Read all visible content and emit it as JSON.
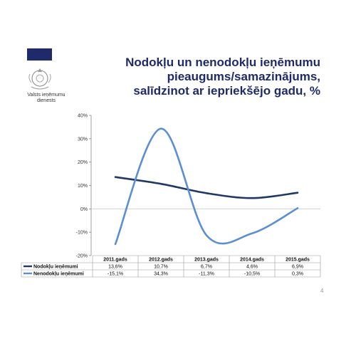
{
  "header": {
    "title_lines": [
      "Nodokļu un nenodokļu ieņēmumu",
      "pieaugums/samazinājums,",
      "salīdzinot ar iepriekšējo gadu, %"
    ],
    "org_name_lines": [
      "Valsts ieņēmumu",
      "dienests"
    ],
    "brand_color": "#1f2a6b",
    "page_number": "4"
  },
  "chart_data": {
    "type": "line",
    "categories": [
      "2011.gads",
      "2012.gads",
      "2013.gads",
      "2014.gads",
      "2015.gads"
    ],
    "y_tick_labels": [
      "40%",
      "30%",
      "20%",
      "10%",
      "0%",
      "-10%",
      "-20%"
    ],
    "ylim": [
      -20,
      40
    ],
    "smooth": true,
    "legend": "data-table-left",
    "series": [
      {
        "name": "Nodokļu ieņēmumi",
        "values": [
          13.6,
          10.7,
          6.7,
          4.6,
          6.9
        ],
        "labels": [
          "13,6%",
          "10,7%",
          "6,7%",
          "4,6%",
          "6,9%"
        ],
        "color": "#1f3864"
      },
      {
        "name": "Nenodokļu ieņēmumi",
        "values": [
          -15.1,
          34.3,
          -11.3,
          -10.5,
          0.3
        ],
        "labels": [
          "-15,1%",
          "34,3%",
          "-11,3%",
          "-10,5%",
          "0,3%"
        ],
        "color": "#5b8fd0"
      }
    ]
  }
}
